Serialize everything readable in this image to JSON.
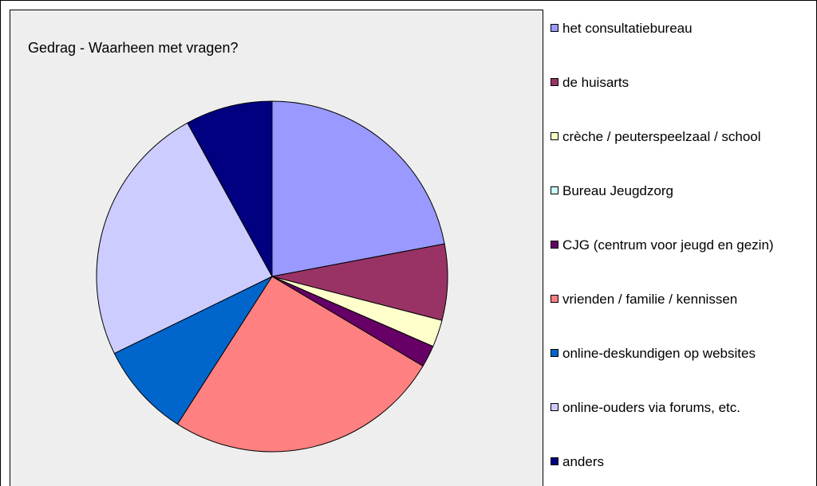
{
  "chart_data": {
    "type": "pie",
    "title": "Gedrag - Waarheen met vragen?",
    "categories": [
      "het consultatiebureau",
      "de huisarts",
      "crèche / peuterspeelzaal / school",
      "Bureau Jeugdzorg",
      "CJG (centrum voor jeugd en gezin)",
      "vrienden / familie / kennissen",
      "online-deskundigen op websites",
      "online-ouders via forums, etc.",
      "anders"
    ],
    "values": [
      22,
      7,
      2.5,
      0,
      2,
      25.5,
      8.7,
      24.2,
      8
    ],
    "colors": [
      "#9999ff",
      "#993366",
      "#ffffcc",
      "#ccffff",
      "#660066",
      "#ff8080",
      "#0066cc",
      "#ccccff",
      "#000080"
    ],
    "legend": "right"
  }
}
